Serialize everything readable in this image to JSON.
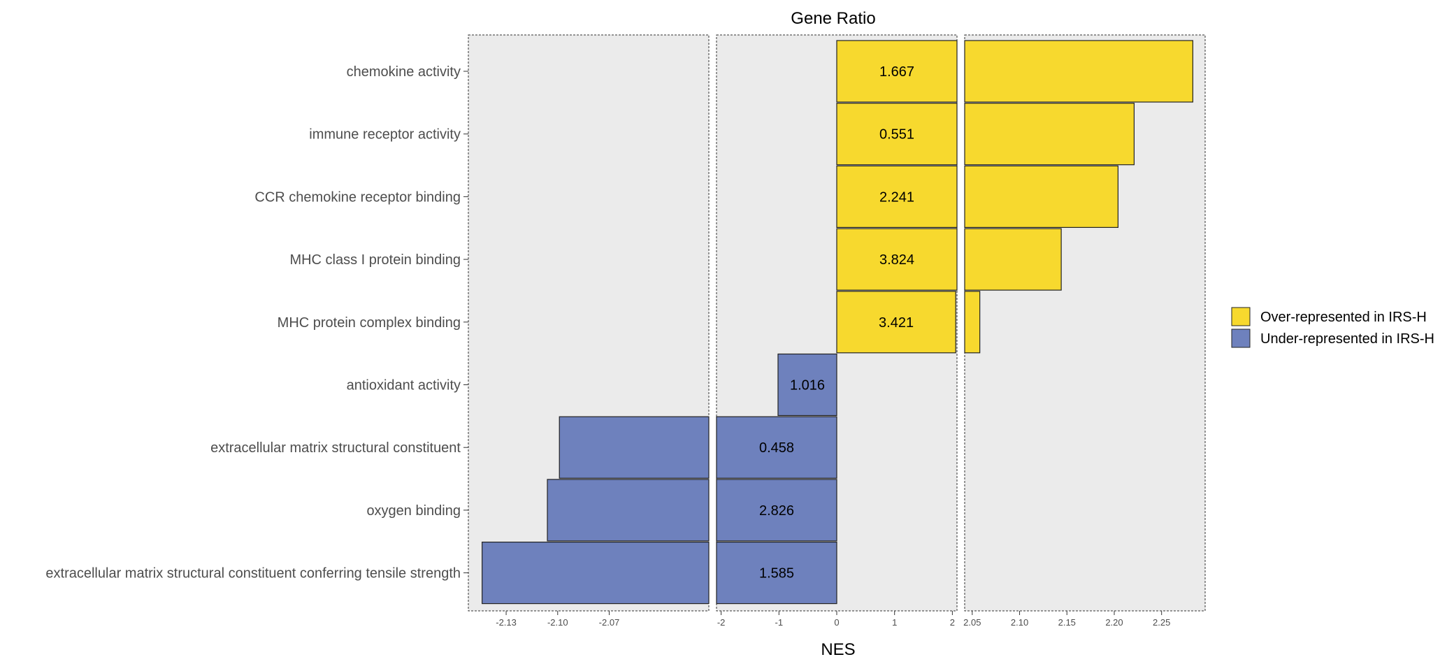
{
  "chart_data": {
    "type": "bar",
    "orientation": "horizontal",
    "title": "Gene Ratio",
    "xlabel": "NES",
    "ylabel": "",
    "categories": [
      "chemokine activity",
      "immune receptor activity",
      "CCR chemokine receptor binding",
      "MHC class I protein binding",
      "MHC protein complex binding",
      "antioxidant activity",
      "extracellular matrix structural constituent",
      "oxygen binding",
      "extracellular matrix structural constituent conferring tensile strength"
    ],
    "nes": [
      2.283,
      2.221,
      2.204,
      2.144,
      2.058,
      -1.016,
      -2.099,
      -2.106,
      -2.144
    ],
    "gene_ratio_labels": [
      "1.667",
      "0.551",
      "2.241",
      "3.824",
      "3.421",
      "1.016",
      "0.458",
      "2.826",
      "1.585"
    ],
    "groups": [
      "over",
      "over",
      "over",
      "over",
      "over",
      "under",
      "under",
      "under",
      "under"
    ],
    "colors": {
      "over": "#F7D92E",
      "under": "#6E81BD"
    },
    "legend": {
      "position": "right",
      "entries": [
        {
          "key": "over",
          "label": "Over-represented in IRS-H"
        },
        {
          "key": "under",
          "label": "Under-represented in IRS-H"
        }
      ]
    },
    "axis_breaks": [
      {
        "range": [
          -2.152,
          -2.012
        ],
        "ticks": [
          -2.13,
          -2.1,
          -2.07
        ],
        "tick_labels": [
          "-2.13",
          "-2.10",
          "-2.07"
        ]
      },
      {
        "range": [
          -2.08,
          2.08
        ],
        "ticks": [
          -2,
          -1,
          0,
          1,
          2
        ],
        "tick_labels": [
          "-2",
          "-1",
          "0",
          "1",
          "2"
        ]
      },
      {
        "range": [
          2.042,
          2.296
        ],
        "ticks": [
          2.05,
          2.1,
          2.15,
          2.2,
          2.25
        ],
        "tick_labels": [
          "2.05",
          "2.10",
          "2.15",
          "2.20",
          "2.25"
        ]
      }
    ]
  }
}
